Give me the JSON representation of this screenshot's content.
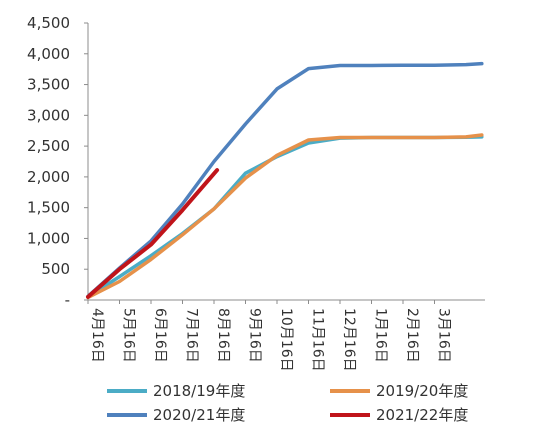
{
  "chart_data": {
    "type": "line",
    "title": "",
    "xlabel": "",
    "ylabel": "",
    "ylim": [
      0,
      4500
    ],
    "y_ticks": [
      0,
      500,
      1000,
      1500,
      2000,
      2500,
      3000,
      3500,
      4000,
      4500
    ],
    "y_tick_labels": [
      "-",
      "500",
      "1,000",
      "1,500",
      "2,000",
      "2,500",
      "3,000",
      "3,500",
      "4,000",
      "4,500"
    ],
    "x_tick_labels": [
      "4月16日",
      "5月16日",
      "6月16日",
      "7月16日",
      "8月16日",
      "9月16日",
      "10月16日",
      "11月16日",
      "12月16日",
      "1月16日",
      "2月16日",
      "3月16日"
    ],
    "x_range": [
      0,
      12.5
    ],
    "grid": false,
    "legend_position": "bottom",
    "series": [
      {
        "name": "2018/19年度",
        "color": "#4bacc6",
        "x": [
          0,
          1,
          2,
          3,
          4,
          5,
          6,
          7,
          8,
          9,
          10,
          11,
          12,
          12.5
        ],
        "y": [
          50,
          380,
          720,
          1080,
          1480,
          2060,
          2330,
          2550,
          2630,
          2640,
          2640,
          2640,
          2645,
          2650
        ]
      },
      {
        "name": "2019/20年度",
        "color": "#e6914a",
        "x": [
          0,
          1,
          2,
          3,
          4,
          5,
          6,
          7,
          8,
          9,
          10,
          11,
          12,
          12.5
        ],
        "y": [
          40,
          300,
          660,
          1060,
          1480,
          1980,
          2350,
          2600,
          2640,
          2640,
          2640,
          2640,
          2650,
          2680
        ]
      },
      {
        "name": "2020/21年度",
        "color": "#4f81bd",
        "x": [
          0,
          1,
          2,
          3,
          4,
          5,
          6,
          7,
          8,
          9,
          10,
          11,
          12,
          12.5
        ],
        "y": [
          60,
          520,
          960,
          1560,
          2250,
          2860,
          3430,
          3760,
          3810,
          3810,
          3815,
          3815,
          3825,
          3840
        ]
      },
      {
        "name": "2021/22年度",
        "color": "#c0141a",
        "x": [
          0,
          1,
          2,
          3,
          4.1
        ],
        "y": [
          50,
          500,
          900,
          1460,
          2110
        ]
      }
    ]
  }
}
